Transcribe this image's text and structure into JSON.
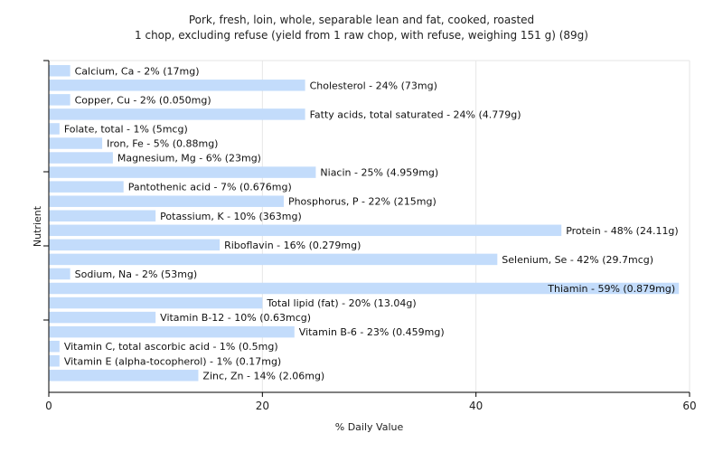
{
  "chart_data": {
    "type": "bar",
    "orientation": "horizontal",
    "title": "Pork, fresh, loin, whole, separable lean and fat, cooked, roasted",
    "subtitle": "1 chop, excluding refuse (yield from 1 raw chop, with refuse, weighing 151 g) (89g)",
    "xlabel": "% Daily Value",
    "ylabel": "Nutrient",
    "xlim": [
      0,
      60
    ],
    "xticks": [
      0,
      20,
      40,
      60
    ],
    "grid": true,
    "bar_color": "#c3dcfb",
    "categories": [
      "Calcium, Ca",
      "Cholesterol",
      "Copper, Cu",
      "Fatty acids, total saturated",
      "Folate, total",
      "Iron, Fe",
      "Magnesium, Mg",
      "Niacin",
      "Pantothenic acid",
      "Phosphorus, P",
      "Potassium, K",
      "Protein",
      "Riboflavin",
      "Selenium, Se",
      "Sodium, Na",
      "Thiamin",
      "Total lipid (fat)",
      "Vitamin B-12",
      "Vitamin B-6",
      "Vitamin C, total ascorbic acid",
      "Vitamin E (alpha-tocopherol)",
      "Zinc, Zn"
    ],
    "values": [
      2,
      24,
      2,
      24,
      1,
      5,
      6,
      25,
      7,
      22,
      10,
      48,
      16,
      42,
      2,
      59,
      20,
      10,
      23,
      1,
      1,
      14
    ],
    "labels": [
      "Calcium, Ca - 2% (17mg)",
      "Cholesterol - 24% (73mg)",
      "Copper, Cu - 2% (0.050mg)",
      "Fatty acids, total saturated - 24% (4.779g)",
      "Folate, total - 1% (5mcg)",
      "Iron, Fe - 5% (0.88mg)",
      "Magnesium, Mg - 6% (23mg)",
      "Niacin - 25% (4.959mg)",
      "Pantothenic acid - 7% (0.676mg)",
      "Phosphorus, P - 22% (215mg)",
      "Potassium, K - 10% (363mg)",
      "Protein - 48% (24.11g)",
      "Riboflavin - 16% (0.279mg)",
      "Selenium, Se - 42% (29.7mcg)",
      "Sodium, Na - 2% (53mg)",
      "Thiamin - 59% (0.879mg)",
      "Total lipid (fat) - 20% (13.04g)",
      "Vitamin B-12 - 10% (0.63mcg)",
      "Vitamin B-6 - 23% (0.459mg)",
      "Vitamin C, total ascorbic acid - 1% (0.5mg)",
      "Vitamin E (alpha-tocopherol) - 1% (0.17mg)",
      "Zinc, Zn - 14% (2.06mg)"
    ]
  }
}
